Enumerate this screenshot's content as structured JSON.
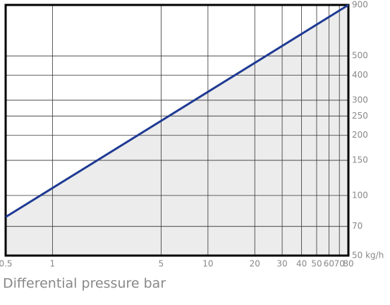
{
  "chart_data": {
    "type": "line",
    "x_label": "Differential pressure bar",
    "x": [
      0.5,
      80
    ],
    "series": [
      {
        "color": "#1f3a93",
        "values": [
          78,
          900
        ]
      }
    ],
    "area_color": "#ececec",
    "xlim": [
      0.5,
      80
    ],
    "ylim": [
      50,
      900
    ],
    "xscale": "log",
    "yscale": "log",
    "xticks": [
      0.5,
      1,
      5,
      10,
      20,
      30,
      40,
      50,
      60,
      70,
      80
    ],
    "yticks": [
      {
        "value": 50,
        "label": "50 kg/h"
      },
      70,
      100,
      150,
      200,
      250,
      300,
      400,
      500,
      900
    ],
    "grid": true
  }
}
